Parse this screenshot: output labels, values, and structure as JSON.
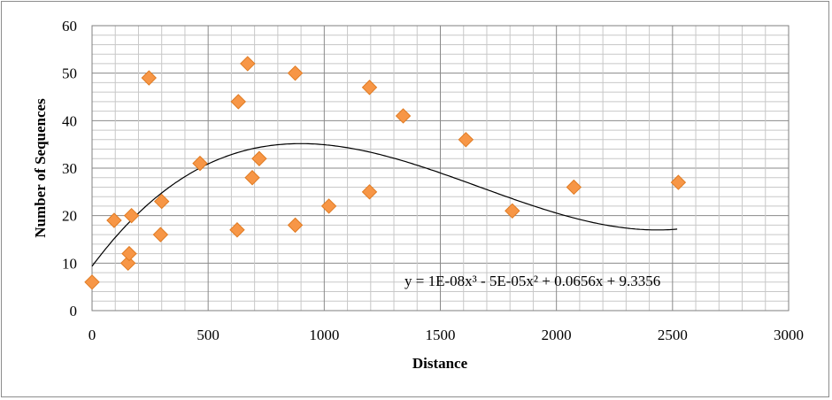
{
  "chart_data": {
    "type": "scatter",
    "title": "",
    "xlabel": "Distance",
    "ylabel": "Number of Sequences",
    "xlim": [
      0,
      3000
    ],
    "ylim": [
      0,
      60
    ],
    "x_ticks": [
      "0",
      "500",
      "1000",
      "1500",
      "2000",
      "2500",
      "3000"
    ],
    "y_ticks": [
      "0",
      "10",
      "20",
      "30",
      "40",
      "50",
      "60"
    ],
    "grid": true,
    "legend": "none",
    "marker": "diamond",
    "marker_color": "#f79646",
    "series": [
      {
        "points": [
          {
            "x": 0,
            "y": 6
          },
          {
            "x": 95,
            "y": 19
          },
          {
            "x": 155,
            "y": 10
          },
          {
            "x": 160,
            "y": 12
          },
          {
            "x": 170,
            "y": 20
          },
          {
            "x": 245,
            "y": 49
          },
          {
            "x": 295,
            "y": 16
          },
          {
            "x": 300,
            "y": 23
          },
          {
            "x": 465,
            "y": 31
          },
          {
            "x": 625,
            "y": 17
          },
          {
            "x": 630,
            "y": 44
          },
          {
            "x": 670,
            "y": 52
          },
          {
            "x": 690,
            "y": 28
          },
          {
            "x": 720,
            "y": 32
          },
          {
            "x": 875,
            "y": 18
          },
          {
            "x": 875,
            "y": 50
          },
          {
            "x": 1020,
            "y": 22
          },
          {
            "x": 1195,
            "y": 25
          },
          {
            "x": 1195,
            "y": 47
          },
          {
            "x": 1340,
            "y": 41
          },
          {
            "x": 1610,
            "y": 36
          },
          {
            "x": 1810,
            "y": 21
          },
          {
            "x": 2075,
            "y": 26
          },
          {
            "x": 2525,
            "y": 27
          }
        ]
      }
    ],
    "trendline": {
      "type": "polynomial",
      "order": 3,
      "coefficients": [
        1e-08,
        -5e-05,
        0.0656,
        9.3356
      ],
      "x_range": [
        0,
        2525
      ],
      "equation": "y = 1E-08x³ - 5E-05x² + 0.0656x + 9.3356",
      "color": "#000000"
    }
  }
}
